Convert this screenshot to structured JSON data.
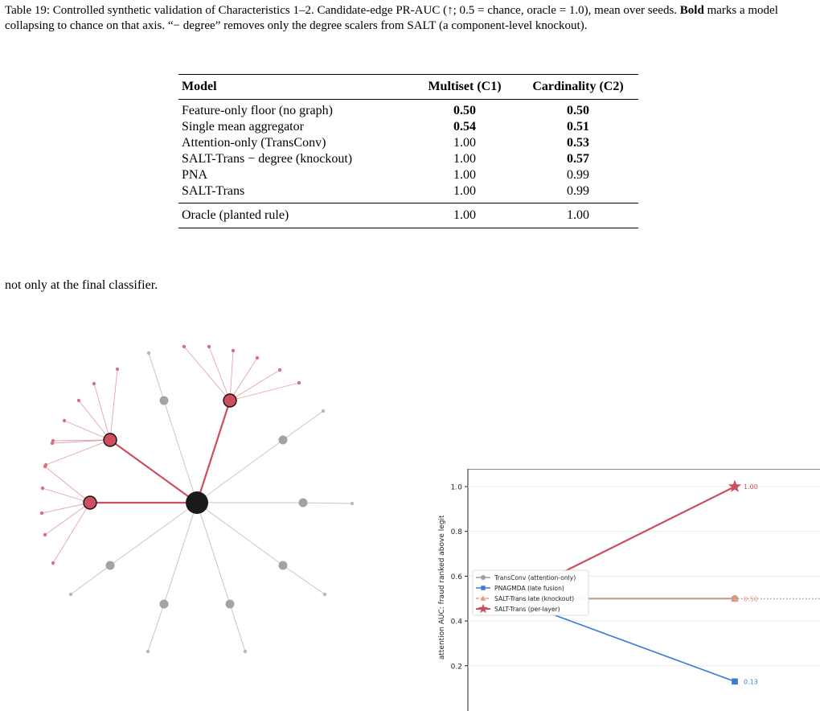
{
  "caption": {
    "label": "Table 19:",
    "part1": " Controlled synthetic validation of Characteristics 1–2. Candidate-edge PR-AUC (↑; 0.5 = chance, oracle = 1.0), mean over seeds. ",
    "bold": "Bold",
    "part2": " marks a model collapsing to chance on that axis. “− degree” removes only the degree scalers from SALT (a component-level knockout)."
  },
  "table": {
    "headers": [
      "Model",
      "Multiset (C1)",
      "Cardinality (C2)"
    ],
    "rows": [
      {
        "model": "Feature-only floor (no graph)",
        "c1": "0.50",
        "c1_bold": true,
        "c2": "0.50",
        "c2_bold": true
      },
      {
        "model": "Single mean aggregator",
        "c1": "0.54",
        "c1_bold": true,
        "c2": "0.51",
        "c2_bold": true
      },
      {
        "model": "Attention-only (TransConv)",
        "c1": "1.00",
        "c1_bold": false,
        "c2": "0.53",
        "c2_bold": true
      },
      {
        "model": "SALT-Trans − degree (knockout)",
        "c1": "1.00",
        "c1_bold": false,
        "c2": "0.57",
        "c2_bold": true
      },
      {
        "model": "PNA",
        "c1": "1.00",
        "c1_bold": false,
        "c2": "0.99",
        "c2_bold": false
      },
      {
        "model": "SALT-Trans",
        "c1": "1.00",
        "c1_bold": false,
        "c2": "0.99",
        "c2_bold": false
      }
    ],
    "oracle": {
      "model": "Oracle (planted rule)",
      "c1": "1.00",
      "c2": "1.00"
    }
  },
  "body_text": "not only at the final classifier.",
  "colors": {
    "fraud": "#cd4e5e",
    "legit": "#a0a3aa",
    "hub": "#1a1a1a",
    "blue": "#3a7bd5",
    "orange": "#e59a7a"
  },
  "chart_data": {
    "type": "line",
    "ylabel": "attention AUC: fraud ranked above legit",
    "ylim": [
      0.0,
      1.1
    ],
    "yticks": [
      "0.2",
      "0.4",
      "0.6",
      "0.8",
      "1.0"
    ],
    "x": [
      0,
      1
    ],
    "grid": true,
    "reference_line": 0.5,
    "legend_position": "center-left",
    "series": [
      {
        "name": "TransConv (attention-only)",
        "marker": "circle",
        "color": "#9aa0a8",
        "values": [
          0.5,
          0.5
        ]
      },
      {
        "name": "PNAGMDA (late fusion)",
        "marker": "square",
        "color": "#3a7bd5",
        "values": [
          0.5,
          0.13
        ],
        "end_label": "0.13"
      },
      {
        "name": "SALT-Trans late (knockout)",
        "marker": "triangle",
        "color": "#e59a7a",
        "values": [
          0.5,
          0.5
        ],
        "end_label": "0.50"
      },
      {
        "name": "SALT-Trans (per-layer)",
        "marker": "star",
        "color": "#cd4e5e",
        "values": [
          0.5,
          1.0
        ],
        "end_label": "1.00"
      }
    ]
  }
}
